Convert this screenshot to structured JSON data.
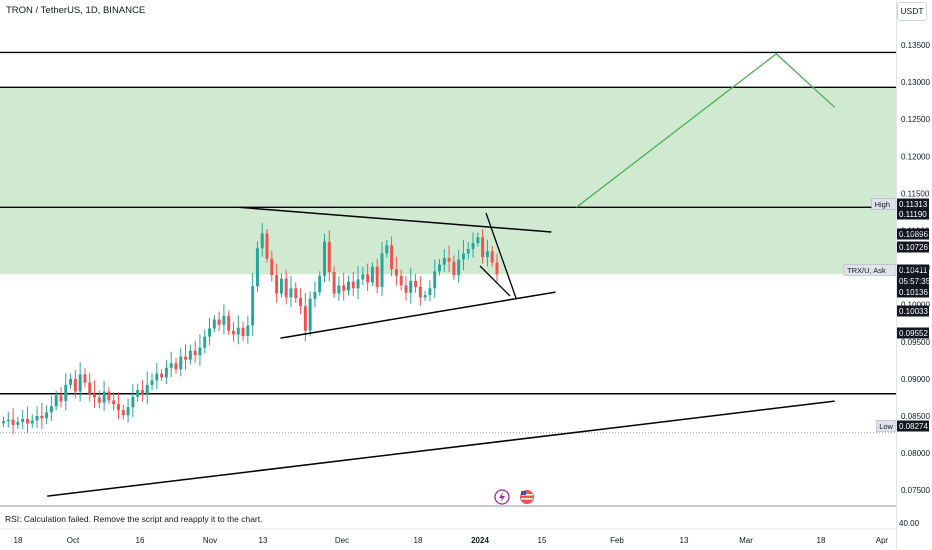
{
  "header": {
    "title": "TRON / TetherUS, 1D, BINANCE",
    "currency": "USDT"
  },
  "rsi": {
    "message": "RSI: Calculation failed. Remove the script and reapply it to the chart.",
    "axis_label": "40.00"
  },
  "colors": {
    "up": "#26a69a",
    "down": "#ef5350",
    "zone": "#c8e6c9",
    "projection": "#4caf50",
    "line": "#000000"
  },
  "chart_data": {
    "type": "candlestick",
    "symbol": "TRON / TetherUS",
    "interval": "1D",
    "exchange": "BINANCE",
    "ylim": [
      0.073,
      0.138
    ],
    "y_ticks": [
      "0.13500",
      "0.13000",
      "0.12500",
      "0.12000",
      "0.11500",
      "0.11000",
      "0.10500",
      "0.10000",
      "0.09500",
      "0.09000",
      "0.08500",
      "0.08000",
      "0.07500"
    ],
    "x_ticks": [
      "18",
      "Oct",
      "16",
      "Nov",
      "13",
      "Dec",
      "18",
      "2024",
      "15",
      "Feb",
      "13",
      "Mar",
      "18",
      "Apr"
    ],
    "price_tags": [
      {
        "label": "High",
        "value": "0.11313"
      },
      {
        "label": "",
        "value": "0.11190"
      },
      {
        "label": "",
        "value": "0.10896"
      },
      {
        "label": "",
        "value": "0.10726"
      },
      {
        "label": "TRX/U, Ask",
        "value": "0.10411"
      },
      {
        "label": "",
        "value": "05:57:35"
      },
      {
        "label": "",
        "value": "0.10136"
      },
      {
        "label": "",
        "value": "0.10033"
      },
      {
        "label": "",
        "value": "0.09552"
      },
      {
        "label": "Low",
        "value": "0.08274"
      }
    ],
    "zone": [
      0.10411,
      0.1293
    ],
    "horizontal_levels": [
      0.134,
      0.1293,
      0.11313,
      0.088
    ],
    "low_dotted": 0.08274,
    "trendlines": [
      {
        "from": [
          "Nov 10",
          0.11313
        ],
        "to": [
          "Jan 24",
          0.1098
        ]
      },
      {
        "from": [
          "Nov 20",
          0.0955
        ],
        "to": [
          "Jan 25",
          0.1017
        ]
      },
      {
        "from": [
          "Sep 25",
          0.0742
        ],
        "to": [
          "Apr 1",
          0.087
        ]
      }
    ],
    "projection": [
      [
        "Jan 30",
        0.11313
      ],
      [
        "Mar 18",
        0.1338
      ],
      [
        "Apr 1",
        0.1266
      ]
    ],
    "closes": [
      0.0843,
      0.0845,
      0.0838,
      0.0842,
      0.0846,
      0.084,
      0.0844,
      0.085,
      0.0847,
      0.0855,
      0.0863,
      0.0878,
      0.087,
      0.0892,
      0.09,
      0.0883,
      0.0906,
      0.0895,
      0.088,
      0.0875,
      0.0868,
      0.0883,
      0.0871,
      0.0866,
      0.0858,
      0.0851,
      0.0862,
      0.0876,
      0.0885,
      0.088,
      0.0892,
      0.0898,
      0.0907,
      0.0902,
      0.0915,
      0.0921,
      0.0913,
      0.093,
      0.0926,
      0.0938,
      0.0932,
      0.0942,
      0.0957,
      0.0968,
      0.098,
      0.0973,
      0.0985,
      0.0965,
      0.096,
      0.0969,
      0.0958,
      0.0972,
      0.1025,
      0.1076,
      0.1096,
      0.1062,
      0.104,
      0.1015,
      0.1035,
      0.101,
      0.1022,
      0.1009,
      0.0998,
      0.0965,
      0.1008,
      0.1017,
      0.1039,
      0.1085,
      0.1044,
      0.1015,
      0.1026,
      0.1019,
      0.1031,
      0.1022,
      0.1034,
      0.1041,
      0.103,
      0.1051,
      0.1024,
      0.1069,
      0.108,
      0.1048,
      0.1039,
      0.1026,
      0.1016,
      0.1032,
      0.1024,
      0.101,
      0.1013,
      0.1022,
      0.1045,
      0.1054,
      0.1063,
      0.1058,
      0.104,
      0.1061,
      0.1069,
      0.1075,
      0.1083,
      0.1091,
      0.1064,
      0.1072,
      0.1057,
      0.1041
    ]
  }
}
